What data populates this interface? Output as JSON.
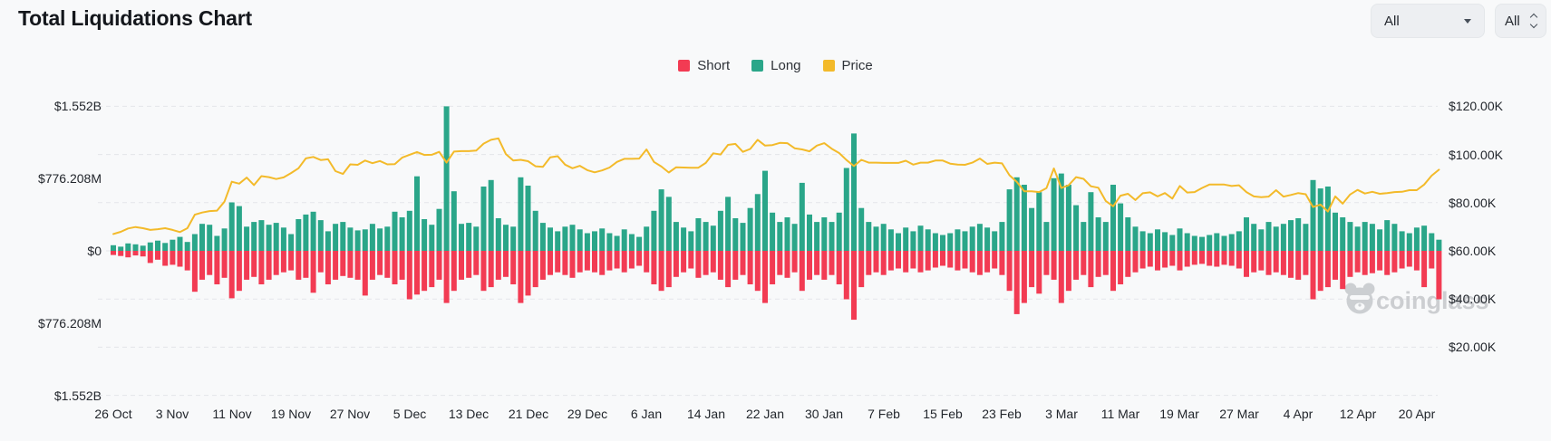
{
  "page": {
    "title": "Total Liquidations Chart"
  },
  "controls": {
    "symbol_dropdown": {
      "value": "All"
    },
    "range_dropdown": {
      "value": "All"
    }
  },
  "legend": [
    {
      "label": "Short",
      "color": "#f23b53"
    },
    {
      "label": "Long",
      "color": "#2aa689"
    },
    {
      "label": "Price",
      "color": "#f3ba2a"
    }
  ],
  "watermark": {
    "text": "coinglass"
  },
  "chart_data": {
    "type": "combo",
    "title": "Total Liquidations Chart",
    "grid": "dashed-horizontal",
    "legend_position": "top-center",
    "x_days_per_tick": 8,
    "x_tick_labels": [
      "26 Oct",
      "3 Nov",
      "11 Nov",
      "19 Nov",
      "27 Nov",
      "5 Dec",
      "13 Dec",
      "21 Dec",
      "29 Dec",
      "6 Jan",
      "14 Jan",
      "22 Jan",
      "30 Jan",
      "7 Feb",
      "15 Feb",
      "23 Feb",
      "3 Mar",
      "11 Mar",
      "19 Mar",
      "27 Mar",
      "4 Apr",
      "12 Apr",
      "20 Apr"
    ],
    "left_axis": {
      "labels": [
        "$1.552B",
        "$776.208M",
        "$0",
        "$776.208M",
        "$1.552B"
      ],
      "max_abs_millions": 1552
    },
    "right_axis": {
      "labels": [
        "$120.00K",
        "$100.00K",
        "$80.00K",
        "$60.00K",
        "$40.00K",
        "$20.00K"
      ],
      "min_thousands": 0,
      "max_thousands": 120
    },
    "series": [
      {
        "name": "Short",
        "type": "bar",
        "direction": "down",
        "unit": "millions_usd",
        "color": "#f23b53",
        "values": [
          45,
          55,
          70,
          50,
          60,
          130,
          95,
          160,
          150,
          170,
          210,
          440,
          310,
          260,
          360,
          290,
          510,
          430,
          310,
          280,
          360,
          310,
          260,
          230,
          210,
          310,
          290,
          450,
          230,
          360,
          310,
          270,
          290,
          310,
          480,
          310,
          260,
          290,
          360,
          310,
          520,
          470,
          430,
          390,
          310,
          560,
          430,
          310,
          290,
          260,
          430,
          390,
          310,
          280,
          360,
          560,
          480,
          390,
          310,
          260,
          230,
          260,
          290,
          230,
          210,
          230,
          260,
          210,
          190,
          230,
          190,
          160,
          230,
          360,
          430,
          390,
          280,
          230,
          190,
          290,
          260,
          230,
          310,
          390,
          310,
          260,
          360,
          430,
          560,
          360,
          260,
          290,
          230,
          430,
          310,
          260,
          310,
          260,
          360,
          520,
          740,
          390,
          260,
          230,
          260,
          210,
          190,
          230,
          190,
          230,
          210,
          180,
          160,
          180,
          210,
          190,
          230,
          260,
          230,
          190,
          260,
          430,
          680,
          560,
          390,
          460,
          260,
          310,
          560,
          430,
          310,
          260,
          390,
          280,
          260,
          430,
          360,
          280,
          230,
          190,
          170,
          210,
          180,
          160,
          210,
          170,
          150,
          140,
          160,
          170,
          150,
          160,
          190,
          280,
          230,
          210,
          260,
          230,
          260,
          290,
          310,
          260,
          520,
          430,
          390,
          310,
          410,
          280,
          230,
          260,
          240,
          210,
          260,
          230,
          190,
          170,
          210,
          390,
          190,
          520
        ]
      },
      {
        "name": "Long",
        "type": "bar",
        "direction": "up",
        "unit": "millions_usd",
        "color": "#2aa689",
        "values": [
          60,
          45,
          80,
          70,
          55,
          90,
          110,
          85,
          120,
          150,
          95,
          180,
          290,
          280,
          160,
          240,
          520,
          480,
          260,
          310,
          330,
          280,
          300,
          250,
          180,
          340,
          390,
          420,
          330,
          210,
          290,
          310,
          250,
          220,
          230,
          290,
          240,
          260,
          420,
          360,
          430,
          800,
          340,
          280,
          450,
          1552,
          640,
          290,
          300,
          260,
          690,
          760,
          350,
          280,
          260,
          790,
          700,
          430,
          300,
          250,
          210,
          260,
          280,
          230,
          190,
          210,
          240,
          190,
          160,
          230,
          180,
          150,
          260,
          430,
          660,
          580,
          310,
          250,
          210,
          350,
          310,
          270,
          430,
          580,
          350,
          300,
          460,
          610,
          860,
          410,
          310,
          360,
          290,
          730,
          390,
          310,
          360,
          310,
          410,
          890,
          1260,
          460,
          310,
          260,
          290,
          230,
          190,
          250,
          210,
          270,
          230,
          190,
          170,
          190,
          230,
          210,
          260,
          290,
          250,
          210,
          310,
          660,
          790,
          710,
          460,
          630,
          310,
          780,
          830,
          710,
          490,
          310,
          630,
          360,
          310,
          710,
          510,
          360,
          260,
          210,
          190,
          230,
          200,
          170,
          240,
          190,
          160,
          150,
          170,
          190,
          160,
          180,
          210,
          360,
          290,
          230,
          310,
          260,
          290,
          330,
          350,
          290,
          760,
          670,
          690,
          410,
          360,
          310,
          260,
          310,
          290,
          230,
          330,
          290,
          210,
          190,
          250,
          270,
          190,
          120
        ]
      },
      {
        "name": "Price",
        "type": "line",
        "unit": "thousands_usd",
        "color": "#f3ba2a",
        "values": [
          67.0,
          67.9,
          69.3,
          69.9,
          69.4,
          68.7,
          69.0,
          69.4,
          68.7,
          67.8,
          69.4,
          75.0,
          75.9,
          76.5,
          76.7,
          80.4,
          88.7,
          87.9,
          90.4,
          87.3,
          91.0,
          90.6,
          89.8,
          90.5,
          92.3,
          94.3,
          98.4,
          99.0,
          97.7,
          98.0,
          93.1,
          91.9,
          95.9,
          95.7,
          97.5,
          96.4,
          97.3,
          95.9,
          96.0,
          98.7,
          99.9,
          101.0,
          99.8,
          99.9,
          101.1,
          96.6,
          101.2,
          101.4,
          101.4,
          101.6,
          104.5,
          106.1,
          106.7,
          100.2,
          97.5,
          97.8,
          97.2,
          95.1,
          94.9,
          98.8,
          99.3,
          95.8,
          94.3,
          95.3,
          93.5,
          92.6,
          93.4,
          94.6,
          96.9,
          98.2,
          98.2,
          98.3,
          102.1,
          96.9,
          95.0,
          92.5,
          94.7,
          94.6,
          94.5,
          94.5,
          96.5,
          100.5,
          100.0,
          104.0,
          104.4,
          101.1,
          102.3,
          106.1,
          103.7,
          103.9,
          104.8,
          104.7,
          102.6,
          102.1,
          101.3,
          103.7,
          104.7,
          102.4,
          100.6,
          97.7,
          95.2,
          97.8,
          96.6,
          96.6,
          96.5,
          96.5,
          96.5,
          97.4,
          95.8,
          96.6,
          96.6,
          97.5,
          97.5,
          96.2,
          95.8,
          95.7,
          96.6,
          98.3,
          96.1,
          96.6,
          96.3,
          91.4,
          88.6,
          84.7,
          84.7,
          84.4,
          86.0,
          94.2,
          86.1,
          87.2,
          90.6,
          89.9,
          86.8,
          86.2,
          80.7,
          78.5,
          82.9,
          83.7,
          81.1,
          83.9,
          84.3,
          82.6,
          84.0,
          81.7,
          86.9,
          84.2,
          84.4,
          86.1,
          87.5,
          87.5,
          87.5,
          86.9,
          87.2,
          84.4,
          82.6,
          82.3,
          82.5,
          85.2,
          82.5,
          83.2,
          84.0,
          83.5,
          78.2,
          79.2,
          76.3,
          82.6,
          79.6,
          83.4,
          85.3,
          83.8,
          84.5,
          83.7,
          84.0,
          84.4,
          84.5,
          85.2,
          85.2,
          87.5,
          91.2,
          93.7
        ]
      }
    ]
  }
}
